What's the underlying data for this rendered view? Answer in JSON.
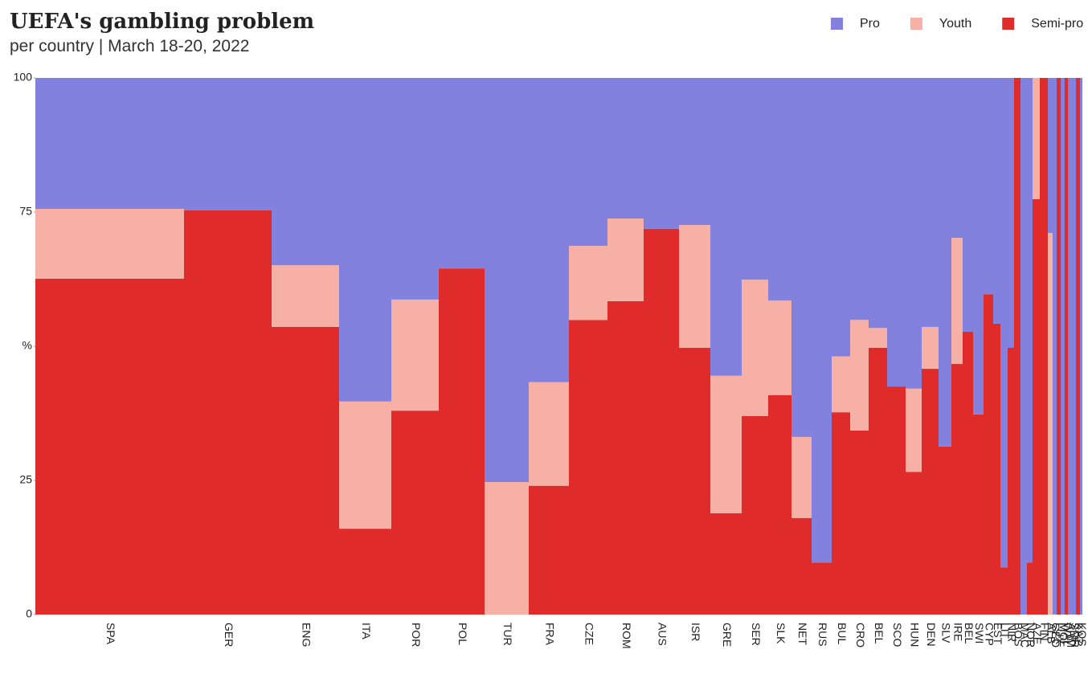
{
  "chart_data": {
    "type": "marimekko",
    "title": "UEFA's gambling problem",
    "subtitle": "per country | March 18-20, 2022",
    "categories": [
      "SPA",
      "GER",
      "ENG",
      "ITA",
      "POR",
      "POL",
      "TUR",
      "FRA",
      "CZE",
      "ROM",
      "AUS",
      "ISR",
      "GRE",
      "SER",
      "SLK",
      "NET",
      "RUS",
      "BUL",
      "CRO",
      "BEL",
      "SCO",
      "HUN",
      "DEN",
      "SLV",
      "IRE",
      "BEL",
      "SWI",
      "CYP",
      "EST",
      "LIT",
      "NIR",
      "BOS",
      "MAC",
      "NOR",
      "AZE",
      "FIN",
      "ALB",
      "GEO",
      "LUX",
      "MOL",
      "WAL",
      "ARM",
      "SMR",
      "KAZ",
      "KOS"
    ],
    "widths": [
      185,
      109,
      84,
      65,
      59,
      57,
      55,
      50,
      48,
      45,
      44,
      39,
      39,
      33,
      29,
      25,
      25,
      23,
      23,
      23,
      23,
      20,
      21,
      16,
      14,
      13,
      13,
      12,
      9,
      9,
      8,
      8,
      8,
      7,
      9,
      10,
      6,
      5,
      5,
      5,
      4,
      5,
      5,
      5,
      3
    ],
    "series": [
      {
        "name": "Pro",
        "color": "#8282de",
        "values": [
          24.4,
          24.7,
          34.9,
          60.3,
          41.3,
          35.5,
          75.3,
          56.7,
          31.3,
          26.2,
          28.1,
          27.4,
          55.5,
          37.6,
          41.5,
          66.9,
          90.3,
          51.9,
          45.1,
          46.6,
          57.5,
          57.9,
          46.4,
          68.7,
          29.8,
          47.3,
          62.7,
          40.3,
          45.8,
          91.2,
          50.3,
          0,
          100,
          90.3,
          0,
          0,
          28.9,
          100,
          0,
          100,
          0,
          100,
          100,
          0,
          100
        ]
      },
      {
        "name": "Youth",
        "color": "#f7b0a6",
        "values": [
          13,
          0,
          11.5,
          23.7,
          20.7,
          0,
          24.7,
          19.3,
          13.8,
          15.4,
          0,
          22.9,
          25.6,
          25.4,
          17.6,
          15.1,
          0,
          10.4,
          20.6,
          3.7,
          0,
          15.5,
          7.8,
          0,
          23.5,
          0,
          0,
          0,
          0,
          0,
          0,
          0,
          0,
          0,
          22.6,
          0,
          71.1,
          0,
          0,
          0,
          0,
          0,
          0,
          0,
          0
        ]
      },
      {
        "name": "Semi-pro",
        "color": "#e02b2b",
        "values": [
          62.6,
          75.3,
          53.6,
          16,
          38,
          64.5,
          0,
          24,
          54.9,
          58.4,
          71.9,
          49.7,
          18.9,
          37,
          40.9,
          18,
          9.7,
          37.7,
          34.3,
          49.7,
          42.5,
          26.6,
          45.8,
          31.3,
          46.7,
          52.7,
          37.3,
          59.7,
          54.2,
          8.8,
          49.7,
          100,
          0,
          9.7,
          77.4,
          100,
          0,
          0,
          100,
          0,
          100,
          0,
          0,
          100,
          0
        ]
      }
    ],
    "ylim": [
      0,
      100
    ],
    "yticks": [
      0,
      25,
      {
        "value": 50,
        "label": "%"
      },
      75,
      100
    ],
    "grid": false,
    "legend": "top-right"
  }
}
